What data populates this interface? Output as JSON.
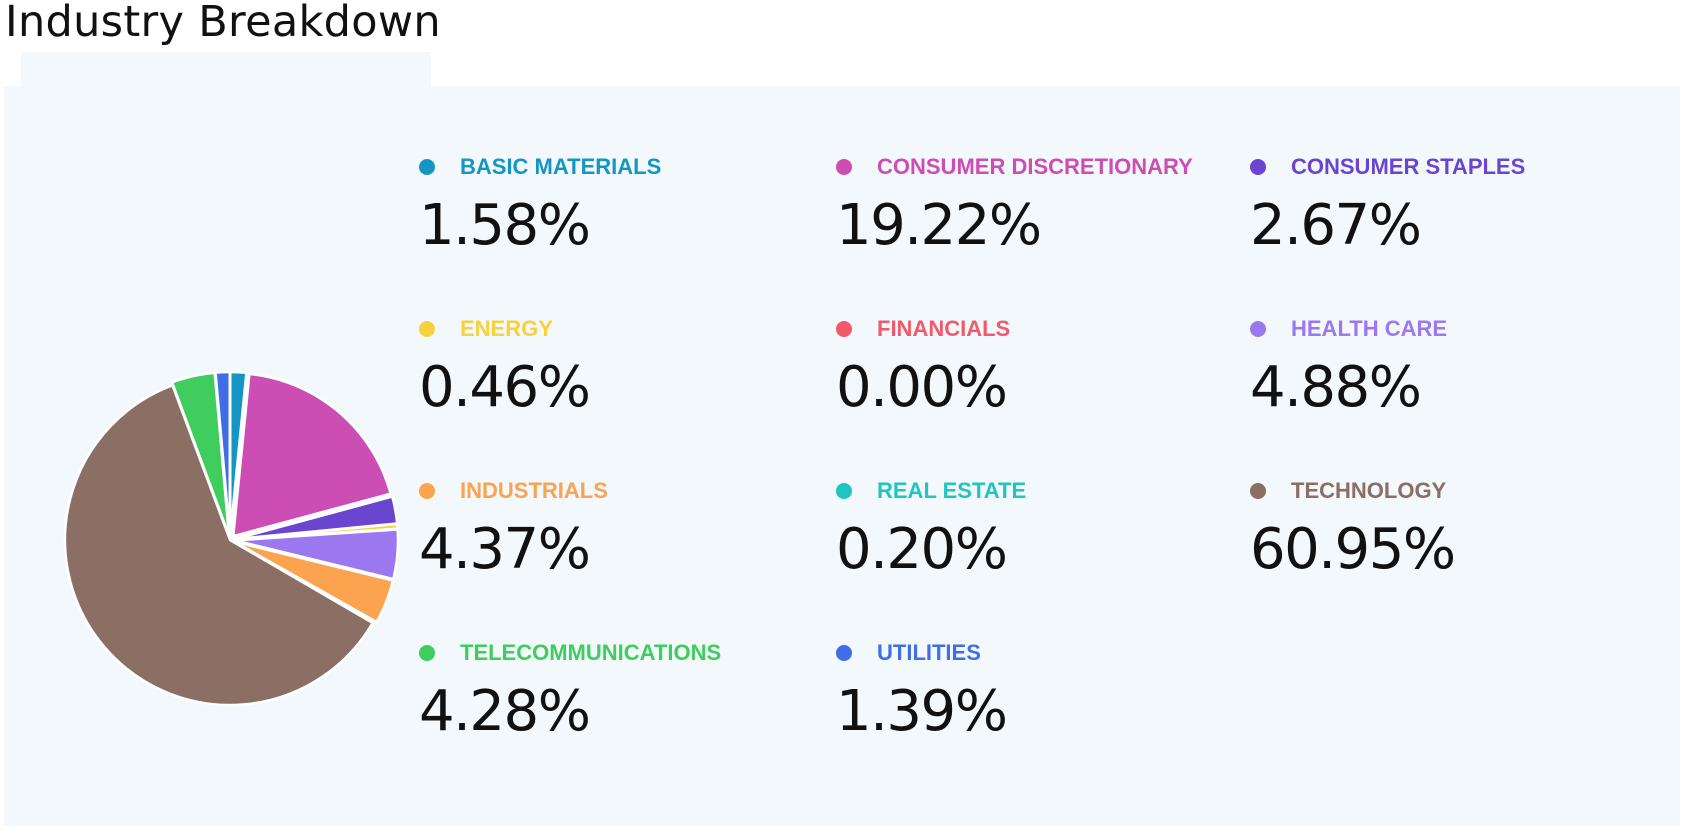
{
  "header": {
    "title": "Industry Breakdown"
  },
  "chart_data": {
    "type": "pie",
    "title": "",
    "start_angle_deg": 0,
    "slices": [
      {
        "label": "BASIC MATERIALS",
        "value": 1.58,
        "display": "1.58%",
        "color": "#1496c4"
      },
      {
        "label": "CONSUMER DISCRETIONARY",
        "value": 19.22,
        "display": "19.22%",
        "color": "#cc4db4"
      },
      {
        "label": "CONSUMER STAPLES",
        "value": 2.67,
        "display": "2.67%",
        "color": "#6a45d0"
      },
      {
        "label": "ENERGY",
        "value": 0.46,
        "display": "0.46%",
        "color": "#f7d23c"
      },
      {
        "label": "FINANCIALS",
        "value": 0.0,
        "display": "0.00%",
        "color": "#f25a6a"
      },
      {
        "label": "HEALTH CARE",
        "value": 4.88,
        "display": "4.88%",
        "color": "#9b78f0"
      },
      {
        "label": "INDUSTRIALS",
        "value": 4.37,
        "display": "4.37%",
        "color": "#fba34e"
      },
      {
        "label": "REAL ESTATE",
        "value": 0.2,
        "display": "0.20%",
        "color": "#20c5c0"
      },
      {
        "label": "TECHNOLOGY",
        "value": 60.95,
        "display": "60.95%",
        "color": "#8b6e64"
      },
      {
        "label": "TELECOMMUNICATIONS",
        "value": 4.28,
        "display": "4.28%",
        "color": "#3fcd5d"
      },
      {
        "label": "UTILITIES",
        "value": 1.39,
        "display": "1.39%",
        "color": "#3f6ee6"
      }
    ]
  }
}
